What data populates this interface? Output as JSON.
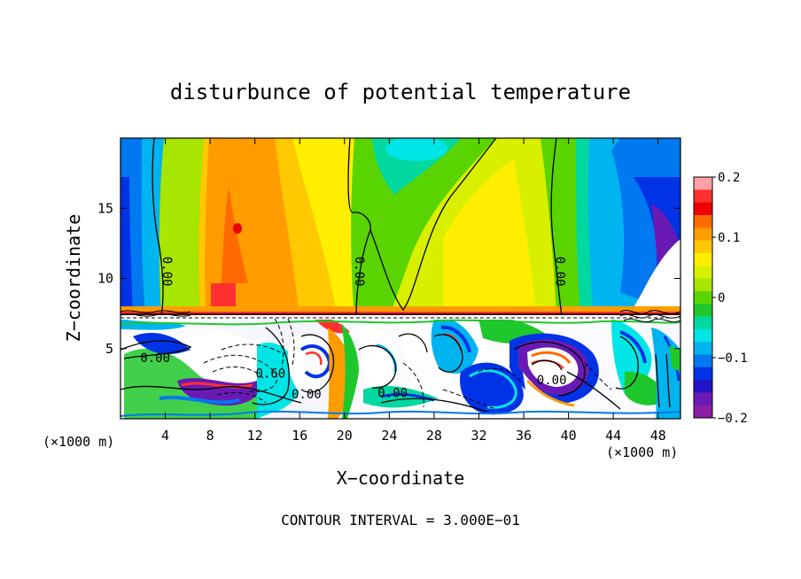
{
  "chart_data": {
    "type": "heatmap",
    "title": "disturbunce of potential temperature",
    "xlabel": "X−coordinate",
    "ylabel": "Z−coordinate",
    "x_unit_left": "(×1000 m)",
    "x_unit_right": "(×1000 m)",
    "footer": "CONTOUR INTERVAL = 3.000E−01",
    "xlim": [
      0,
      50
    ],
    "ylim": [
      0,
      20
    ],
    "xticks": [
      4,
      8,
      12,
      16,
      20,
      24,
      28,
      32,
      36,
      40,
      44,
      48
    ],
    "xtick_labels": [
      "4",
      "8",
      "12",
      "16",
      "20",
      "24",
      "28",
      "32",
      "36",
      "40",
      "44",
      "48"
    ],
    "yticks": [
      5,
      10,
      15
    ],
    "ytick_labels": [
      "5",
      "10",
      "15"
    ],
    "colorbar": {
      "range": [
        -0.2,
        0.2
      ],
      "ticks": [
        0.2,
        0.1,
        0,
        -0.1,
        -0.2
      ],
      "tick_labels": [
        "0.2",
        "0.1",
        "0",
        "−0.1",
        "−0.2"
      ],
      "colors": [
        "#ff9fa8",
        "#ff3030",
        "#ee0000",
        "#ff6a00",
        "#ff9c00",
        "#ffc800",
        "#ffee00",
        "#d8f000",
        "#a6e600",
        "#5ad400",
        "#1ec82c",
        "#00d8a0",
        "#00e6e6",
        "#00b4f0",
        "#0078f0",
        "#0032e6",
        "#2414c8",
        "#6a1ab4",
        "#8c1ea8"
      ]
    },
    "contour_labels": [
      {
        "text": "0.00",
        "x": 4.1,
        "y": 10.5,
        "rot": 90
      },
      {
        "text": "0.00",
        "x": 21.3,
        "y": 10.5,
        "rot": 90
      },
      {
        "text": "0.00",
        "x": 39.2,
        "y": 10.5,
        "rot": 90
      },
      {
        "text": "0.00",
        "x": 3.1,
        "y": 4.3,
        "rot": 0
      },
      {
        "text": "0.60",
        "x": 13.4,
        "y": 3.2,
        "rot": 0
      },
      {
        "text": "0.00",
        "x": 16.6,
        "y": 1.7,
        "rot": 0
      },
      {
        "text": "0.00",
        "x": 24.3,
        "y": 1.8,
        "rot": 0
      },
      {
        "text": "0.00",
        "x": 38.5,
        "y": 2.7,
        "rot": 0
      }
    ]
  }
}
